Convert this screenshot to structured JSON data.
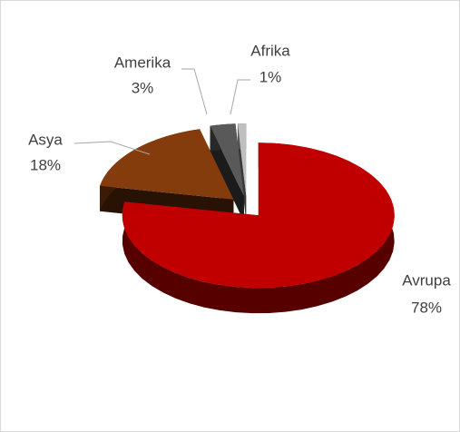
{
  "chart_data": {
    "type": "pie",
    "categories": [
      "Avrupa",
      "Asya",
      "Amerika",
      "Afrika"
    ],
    "values": [
      78,
      18,
      3,
      1
    ],
    "value_labels": [
      "78%",
      "18%",
      "3%",
      "1%"
    ],
    "colors": [
      "#c00000",
      "#843c0c",
      "#595959",
      "#bfbfbf"
    ]
  }
}
